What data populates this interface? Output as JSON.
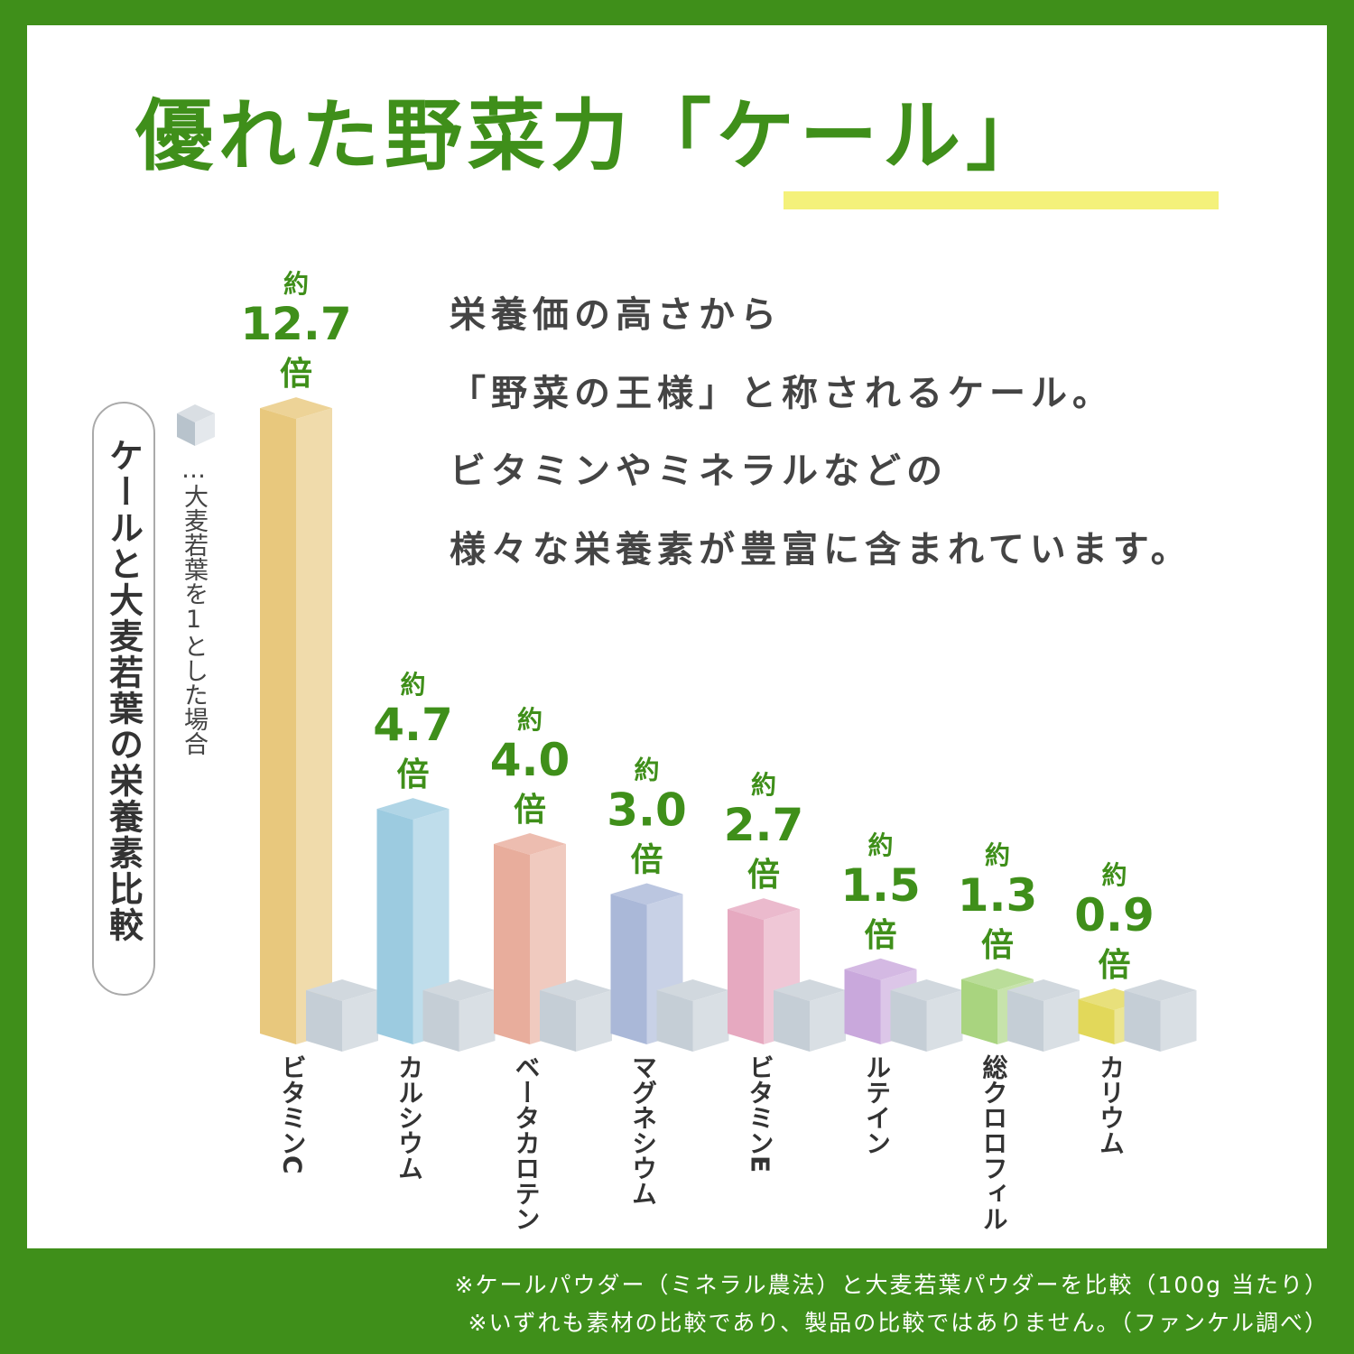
{
  "title": "優れた野菜力「ケール」",
  "body_lines": [
    "栄養価の高さから",
    "「野菜の王様」と称されるケール。",
    "ビタミンやミネラルなどの",
    "様々な栄養素が豊富に含まれています。"
  ],
  "chart_label": "ケールと大麦若葉の栄養素比較",
  "legend_text": "…大麦若葉を1とした場合",
  "footnotes": [
    "※ケールパウダー（ミネラル農法）と大麦若葉パウダーを比較（100g 当たり）",
    "※いずれも素材の比較であり、製品の比較ではありません。（ファンケル調べ）"
  ],
  "colors": {
    "background": "#3f8f1a",
    "accent_text": "#3f8f1a",
    "highlight": "#f4f17a",
    "baseline_cube": "#c5ced6"
  },
  "chart_data": {
    "type": "bar",
    "title": "ケールと大麦若葉の栄養素比較",
    "baseline_label": "大麦若葉を1とした場合",
    "baseline_value": 1,
    "value_prefix": "約",
    "value_suffix": "倍",
    "categories": [
      "ビタミンC",
      "カルシウム",
      "ベータカロテン",
      "マグネシウム",
      "ビタミンE",
      "ルテイン",
      "総クロロフィル",
      "カリウム"
    ],
    "values": [
      12.7,
      4.7,
      4.0,
      3.0,
      2.7,
      1.5,
      1.3,
      0.9
    ],
    "value_labels": [
      "12.7",
      "4.7",
      "4.0",
      "3.0",
      "2.7",
      "1.5",
      "1.3",
      "0.9"
    ],
    "bar_colors": [
      "#e8c87d",
      "#9ccbe0",
      "#e8ad9c",
      "#aab8d8",
      "#e6a9c0",
      "#c9a8dc",
      "#a9d47f",
      "#e2d85a"
    ]
  }
}
